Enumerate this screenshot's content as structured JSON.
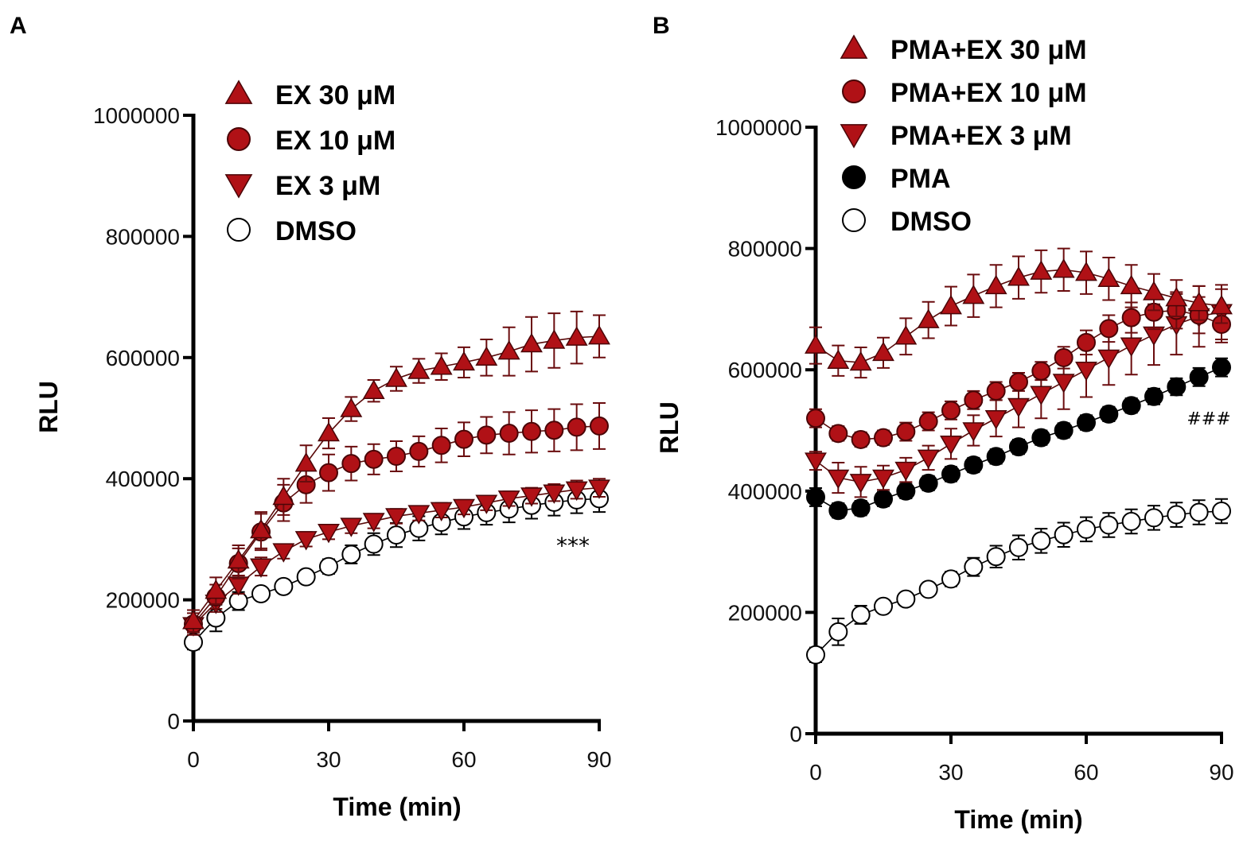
{
  "colors": {
    "red": "#b01116",
    "black": "#000000",
    "white": "#ffffff"
  },
  "chart_data": [
    {
      "panel": "A",
      "type": "line",
      "xlabel": "Time (min)",
      "ylabel": "RLU",
      "xlim": [
        0,
        90
      ],
      "ylim": [
        0,
        1000000
      ],
      "xticks": [
        "0",
        "30",
        "60",
        "90"
      ],
      "yticks": [
        "0",
        "200000",
        "400000",
        "600000",
        "800000",
        "1000000"
      ],
      "annotation": "***",
      "legend_position": "top",
      "x": [
        0,
        5,
        10,
        15,
        20,
        25,
        30,
        35,
        40,
        45,
        50,
        55,
        60,
        65,
        70,
        75,
        80,
        85,
        90
      ],
      "series": [
        {
          "name": "EX 30 μM",
          "marker": "triangle-up",
          "fill": "red",
          "values": [
            165000,
            215000,
            265000,
            315000,
            370000,
            425000,
            475000,
            515000,
            545000,
            565000,
            578000,
            585000,
            592000,
            600000,
            610000,
            622000,
            628000,
            633000,
            635000
          ],
          "errors": [
            18000,
            22000,
            25000,
            30000,
            30000,
            30000,
            25000,
            20000,
            18000,
            20000,
            20000,
            22000,
            25000,
            30000,
            40000,
            45000,
            45000,
            43000,
            35000
          ]
        },
        {
          "name": "EX 10 μM",
          "marker": "circle",
          "fill": "red",
          "values": [
            160000,
            205000,
            260000,
            312000,
            360000,
            390000,
            410000,
            425000,
            432000,
            437000,
            445000,
            455000,
            465000,
            472000,
            475000,
            478000,
            480000,
            485000,
            487000
          ],
          "errors": [
            18000,
            20000,
            25000,
            30000,
            30000,
            30000,
            30000,
            28000,
            25000,
            25000,
            25000,
            28000,
            28000,
            30000,
            35000,
            35000,
            35000,
            38000,
            38000
          ]
        },
        {
          "name": "EX 3 μM",
          "marker": "triangle-down",
          "fill": "red",
          "values": [
            158000,
            195000,
            225000,
            255000,
            280000,
            300000,
            312000,
            322000,
            330000,
            338000,
            343000,
            348000,
            353000,
            360000,
            367000,
            372000,
            377000,
            382000,
            385000
          ],
          "errors": [
            12000,
            15000,
            15000,
            15000,
            12000,
            12000,
            12000,
            12000,
            12000,
            12000,
            12000,
            12000,
            12000,
            12000,
            12000,
            13000,
            14000,
            15000,
            15000
          ]
        },
        {
          "name": "DMSO",
          "marker": "circle",
          "fill": "white",
          "values": [
            130000,
            170000,
            198000,
            210000,
            222000,
            238000,
            255000,
            275000,
            292000,
            307000,
            318000,
            328000,
            337000,
            344000,
            350000,
            356000,
            361000,
            365000,
            367000
          ],
          "errors": [
            12000,
            22000,
            15000,
            10000,
            10000,
            10000,
            12000,
            15000,
            18000,
            20000,
            20000,
            20000,
            20000,
            20000,
            22000,
            22000,
            22000,
            22000,
            22000
          ]
        }
      ]
    },
    {
      "panel": "B",
      "type": "line",
      "xlabel": "Time (min)",
      "ylabel": "RLU",
      "xlim": [
        0,
        90
      ],
      "ylim": [
        0,
        1000000
      ],
      "xticks": [
        "0",
        "30",
        "60",
        "90"
      ],
      "yticks": [
        "0",
        "200000",
        "400000",
        "600000",
        "800000",
        "1000000"
      ],
      "annotation": "###",
      "legend_position": "top",
      "x": [
        0,
        5,
        10,
        15,
        20,
        25,
        30,
        35,
        40,
        45,
        50,
        55,
        60,
        65,
        70,
        75,
        80,
        85,
        90
      ],
      "series": [
        {
          "name": "PMA+EX 30 μM",
          "marker": "triangle-up",
          "fill": "red",
          "values": [
            640000,
            615000,
            612000,
            628000,
            655000,
            682000,
            705000,
            722000,
            738000,
            752000,
            762000,
            765000,
            760000,
            750000,
            738000,
            728000,
            718000,
            710000,
            705000
          ],
          "errors": [
            30000,
            25000,
            25000,
            25000,
            30000,
            30000,
            32000,
            35000,
            35000,
            35000,
            35000,
            35000,
            35000,
            35000,
            35000,
            30000,
            30000,
            28000,
            28000
          ]
        },
        {
          "name": "PMA+EX 10 μM",
          "marker": "circle",
          "fill": "red",
          "values": [
            520000,
            495000,
            485000,
            488000,
            498000,
            515000,
            533000,
            550000,
            565000,
            580000,
            598000,
            620000,
            645000,
            668000,
            686000,
            695000,
            698000,
            690000,
            675000
          ],
          "errors": [
            15000,
            12000,
            12000,
            12000,
            15000,
            15000,
            15000,
            15000,
            15000,
            15000,
            15000,
            18000,
            20000,
            22000,
            25000,
            28000,
            30000,
            30000,
            30000
          ]
        },
        {
          "name": "PMA+EX 3 μM",
          "marker": "triangle-down",
          "fill": "red",
          "values": [
            450000,
            422000,
            415000,
            422000,
            435000,
            455000,
            478000,
            500000,
            520000,
            540000,
            560000,
            580000,
            600000,
            620000,
            640000,
            658000,
            675000,
            688000,
            695000
          ],
          "errors": [
            15000,
            25000,
            25000,
            20000,
            20000,
            20000,
            25000,
            25000,
            30000,
            35000,
            40000,
            45000,
            45000,
            45000,
            48000,
            50000,
            50000,
            50000,
            45000
          ]
        },
        {
          "name": "PMA",
          "marker": "circle",
          "fill": "black",
          "values": [
            390000,
            368000,
            372000,
            387000,
            400000,
            413000,
            428000,
            443000,
            457000,
            473000,
            488000,
            500000,
            513000,
            527000,
            541000,
            556000,
            572000,
            588000,
            604000
          ],
          "errors": [
            15000,
            12000,
            12000,
            12000,
            12000,
            12000,
            12000,
            12000,
            12000,
            12000,
            12000,
            12000,
            12000,
            12000,
            12000,
            13000,
            14000,
            15000,
            15000
          ]
        },
        {
          "name": "DMSO",
          "marker": "circle",
          "fill": "white",
          "values": [
            130000,
            168000,
            196000,
            210000,
            222000,
            238000,
            255000,
            275000,
            292000,
            307000,
            318000,
            328000,
            337000,
            344000,
            350000,
            356000,
            361000,
            365000,
            367000
          ],
          "errors": [
            12000,
            22000,
            15000,
            10000,
            10000,
            10000,
            12000,
            15000,
            18000,
            20000,
            20000,
            20000,
            20000,
            20000,
            20000,
            20000,
            20000,
            20000,
            20000
          ]
        }
      ]
    }
  ]
}
